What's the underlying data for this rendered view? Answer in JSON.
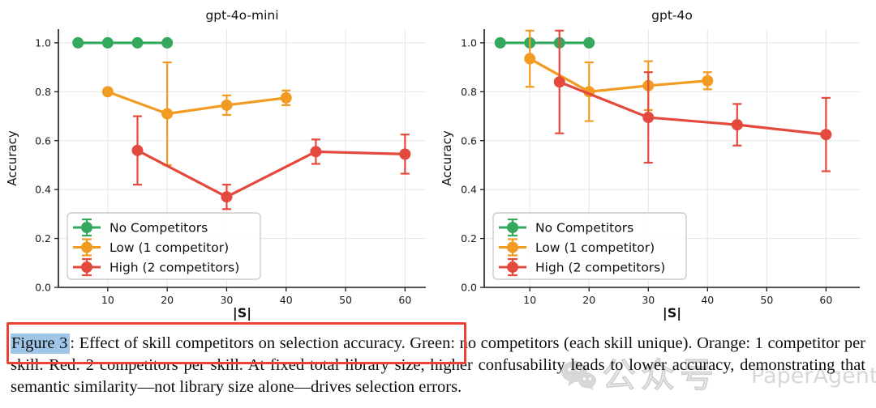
{
  "caption": {
    "figure_label": "Figure 3",
    "title_sentence": ": Effect of skill competitors on selection accuracy.",
    "body": " Green: no competitors (each skill unique). Orange: 1 competitor per skill. Red: 2 competitors per skill. At fixed total library size, higher confusability leads to lower accuracy, demonstrating that semantic similarity—not library size alone—drives selection errors.",
    "highlight_color": "#9fc5e8",
    "annotation_box_color": "#ee4136"
  },
  "watermark": {
    "icon": "wechat-icon",
    "cn": "公众号",
    "en": "PaperAgent",
    "color": "#bdbdbd"
  },
  "chart_data": [
    {
      "type": "line",
      "title": "gpt-4o-mini",
      "xlabel": "|S|",
      "ylabel": "Accuracy",
      "xlim": [
        1.7,
        63.5
      ],
      "ylim": [
        0,
        1.056
      ],
      "xticks": [
        10,
        20,
        30,
        40,
        50,
        60
      ],
      "yticks": [
        0.0,
        0.2,
        0.4,
        0.6,
        0.8,
        1.0
      ],
      "grid": true,
      "legend_position": "lower-left",
      "series": [
        {
          "name": "No Competitors",
          "color": "#34a85c",
          "x": [
            5,
            10,
            15,
            20
          ],
          "y": [
            1.0,
            1.0,
            1.0,
            1.0
          ],
          "yerr": [
            0,
            0,
            0,
            0
          ]
        },
        {
          "name": "Low (1 competitor)",
          "color": "#f29b23",
          "x": [
            10,
            20,
            30,
            40
          ],
          "y": [
            0.8,
            0.71,
            0.745,
            0.775
          ],
          "yerr": [
            0,
            0.21,
            0.04,
            0.03
          ]
        },
        {
          "name": "High (2 competitors)",
          "color": "#e4493e",
          "x": [
            15,
            30,
            45,
            60
          ],
          "y": [
            0.56,
            0.37,
            0.555,
            0.545
          ],
          "yerr": [
            0.14,
            0.05,
            0.05,
            0.08
          ]
        }
      ]
    },
    {
      "type": "line",
      "title": "gpt-4o",
      "xlabel": "|S|",
      "ylabel": "Accuracy",
      "xlim": [
        2.3,
        65.7
      ],
      "ylim": [
        0,
        1.056
      ],
      "xticks": [
        10,
        20,
        30,
        40,
        50,
        60
      ],
      "yticks": [
        0.0,
        0.2,
        0.4,
        0.6,
        0.8,
        1.0
      ],
      "grid": true,
      "legend_position": "lower-left",
      "series": [
        {
          "name": "No Competitors",
          "color": "#34a85c",
          "x": [
            5,
            10,
            15,
            20
          ],
          "y": [
            1.0,
            1.0,
            1.0,
            1.0
          ],
          "yerr": [
            0,
            0,
            0,
            0
          ]
        },
        {
          "name": "Low (1 competitor)",
          "color": "#f29b23",
          "x": [
            10,
            20,
            30,
            40
          ],
          "y": [
            0.935,
            0.8,
            0.825,
            0.845
          ],
          "yerr": [
            0.115,
            0.12,
            0.1,
            0.035
          ]
        },
        {
          "name": "High (2 competitors)",
          "color": "#e4493e",
          "x": [
            15,
            30,
            45,
            60
          ],
          "y": [
            0.84,
            0.695,
            0.665,
            0.625
          ],
          "yerr": [
            0.21,
            0.185,
            0.085,
            0.15
          ]
        }
      ]
    }
  ]
}
